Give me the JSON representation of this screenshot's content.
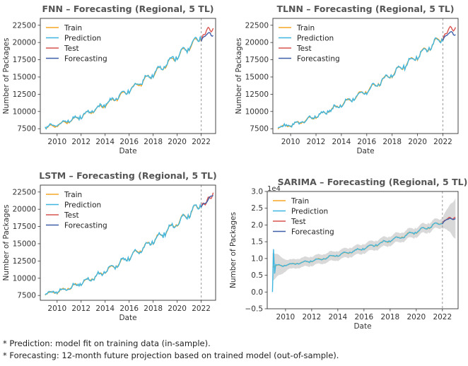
{
  "chart_data": [
    {
      "type": "line",
      "title": "FNN – Forecasting (Regional, 5 TL)",
      "xlabel": "Date",
      "ylabel": "Number of Packages",
      "xlim": [
        2008.6,
        2023.2
      ],
      "ylim": [
        6800,
        23500
      ],
      "xticks": [
        2010,
        2012,
        2014,
        2016,
        2018,
        2020,
        2022
      ],
      "yticks": [
        7500,
        10000,
        12500,
        15000,
        17500,
        20000,
        22500
      ],
      "ytick_labels": [
        "7500",
        "10000",
        "12500",
        "15000",
        "17500",
        "20000",
        "22500"
      ],
      "scale_note": "",
      "legend_position": "top-left",
      "split_line_x": 2022.0,
      "series": [
        {
          "name": "Train",
          "color": "#f5a623"
        },
        {
          "name": "Prediction",
          "color": "#3fb6e0"
        },
        {
          "name": "Test",
          "color": "#d9534f"
        },
        {
          "name": "Forecasting",
          "color": "#3f5ea8"
        }
      ],
      "variant": "fnn"
    },
    {
      "type": "line",
      "title": "TLNN – Forecasting (Regional, 5 TL)",
      "xlabel": "Date",
      "ylabel": "Number of Packages",
      "xlim": [
        2008.6,
        2023.2
      ],
      "ylim": [
        6800,
        23500
      ],
      "xticks": [
        2010,
        2012,
        2014,
        2016,
        2018,
        2020,
        2022
      ],
      "yticks": [
        7500,
        10000,
        12500,
        15000,
        17500,
        20000,
        22500
      ],
      "ytick_labels": [
        "7500",
        "10000",
        "12500",
        "15000",
        "17500",
        "20000",
        "22500"
      ],
      "scale_note": "",
      "legend_position": "top-left",
      "split_line_x": 2022.0,
      "series": [
        {
          "name": "Train",
          "color": "#f5a623"
        },
        {
          "name": "Prediction",
          "color": "#3fb6e0"
        },
        {
          "name": "Test",
          "color": "#d9534f"
        },
        {
          "name": "Forecasting",
          "color": "#3f5ea8"
        }
      ],
      "variant": "tlnn"
    },
    {
      "type": "line",
      "title": "LSTM – Forecasting (Regional, 5 TL)",
      "xlabel": "Date",
      "ylabel": "Number of Packages",
      "xlim": [
        2008.6,
        2023.2
      ],
      "ylim": [
        6800,
        23500
      ],
      "xticks": [
        2010,
        2012,
        2014,
        2016,
        2018,
        2020,
        2022
      ],
      "yticks": [
        7500,
        10000,
        12500,
        15000,
        17500,
        20000,
        22500
      ],
      "ytick_labels": [
        "7500",
        "10000",
        "12500",
        "15000",
        "17500",
        "20000",
        "22500"
      ],
      "scale_note": "",
      "legend_position": "top-left",
      "split_line_x": 2022.0,
      "series": [
        {
          "name": "Train",
          "color": "#f5a623"
        },
        {
          "name": "Prediction",
          "color": "#3fb6e0"
        },
        {
          "name": "Test",
          "color": "#d9534f"
        },
        {
          "name": "Forecasting",
          "color": "#3f5ea8"
        }
      ],
      "variant": "lstm"
    },
    {
      "type": "line",
      "title": "SARIMA – Forecasting (Regional, 5 TL)",
      "xlabel": "Date",
      "ylabel": "Number of Packages",
      "xlim": [
        2008.6,
        2023.2
      ],
      "ylim": [
        -0.5,
        3.0
      ],
      "xticks": [
        2010,
        2012,
        2014,
        2016,
        2018,
        2020,
        2022
      ],
      "yticks": [
        -0.5,
        0.0,
        0.5,
        1.0,
        1.5,
        2.0,
        2.5,
        3.0
      ],
      "ytick_labels": [
        "−0.5",
        "0.0",
        "0.5",
        "1.0",
        "1.5",
        "2.0",
        "2.5",
        "3.0"
      ],
      "scale_note": "1e4",
      "legend_position": "top-left",
      "split_line_x": 2022.0,
      "confidence_band": true,
      "series": [
        {
          "name": "Train",
          "color": "#f5a623"
        },
        {
          "name": "Prediction",
          "color": "#3fb6e0"
        },
        {
          "name": "Test",
          "color": "#d9534f"
        },
        {
          "name": "Forecasting",
          "color": "#3f5ea8"
        }
      ],
      "variant": "sarima"
    }
  ],
  "footnotes": {
    "prediction": "* Prediction: model fit on training data (in-sample).",
    "forecasting": "* Forecasting: 12-month future projection based on trained model (out-of-sample)."
  }
}
